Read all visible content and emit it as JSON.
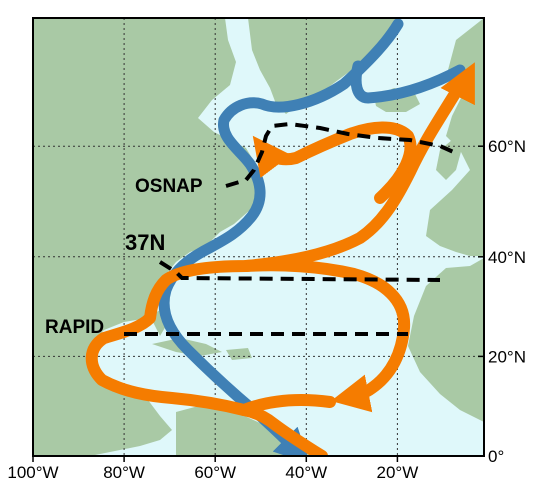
{
  "map": {
    "ocean_color": "#dff8fa",
    "land_color": "#a9c9a5",
    "border_color": "#000000",
    "warm_current_color": "#f57c00",
    "cold_current_color": "#3f80b5",
    "section_line_color": "#000000",
    "lon_ticks": [
      {
        "lon": -100,
        "label": "100°W"
      },
      {
        "lon": -80,
        "label": "80°W"
      },
      {
        "lon": -60,
        "label": "60°W"
      },
      {
        "lon": -40,
        "label": "40°W"
      },
      {
        "lon": -20,
        "label": "20°W"
      }
    ],
    "lat_ticks": [
      {
        "lat": 60,
        "label": "60°N"
      },
      {
        "lat": 40,
        "label": "40°N"
      },
      {
        "lat": 20,
        "label": "20°N"
      },
      {
        "lat": 0,
        "label": "0°"
      }
    ],
    "sections": [
      {
        "id": "osnap",
        "label": "OSNAP"
      },
      {
        "id": "37n",
        "label": "37N"
      },
      {
        "id": "rapid",
        "label": "RAPID"
      }
    ]
  }
}
